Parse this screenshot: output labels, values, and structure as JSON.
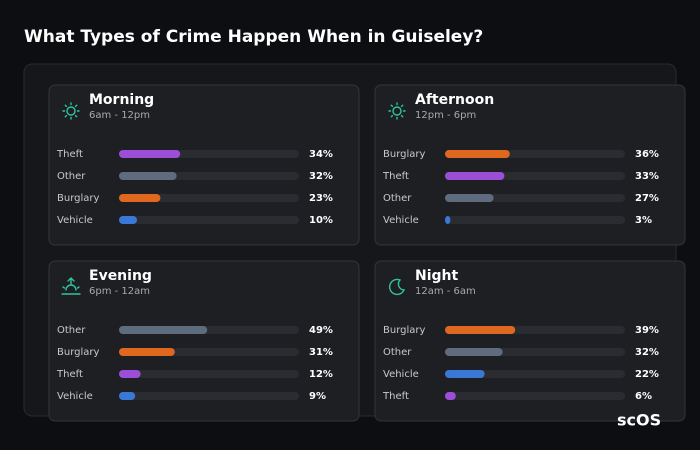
{
  "title": "What Types of Crime Happen When in Guiseley?",
  "logo": "scOS",
  "chart_data": [
    {
      "type": "bar",
      "title": "Morning",
      "subtitle": "6am - 12pm",
      "categories": [
        "Theft",
        "Other",
        "Burglary",
        "Vehicle"
      ],
      "values": [
        34,
        32,
        23,
        10
      ],
      "value_labels": [
        "34%",
        "32%",
        "23%",
        "10%"
      ],
      "colors": [
        "#9b4fd6",
        "#5f6b7f",
        "#e0681e",
        "#3a78d8"
      ],
      "xlim": [
        0,
        100
      ]
    },
    {
      "type": "bar",
      "title": "Afternoon",
      "subtitle": "12pm - 6pm",
      "categories": [
        "Burglary",
        "Theft",
        "Other",
        "Vehicle"
      ],
      "values": [
        36,
        33,
        27,
        3
      ],
      "value_labels": [
        "36%",
        "33%",
        "27%",
        "3%"
      ],
      "colors": [
        "#e0681e",
        "#9b4fd6",
        "#5f6b7f",
        "#3a78d8"
      ],
      "xlim": [
        0,
        100
      ]
    },
    {
      "type": "bar",
      "title": "Evening",
      "subtitle": "6pm - 12am",
      "categories": [
        "Other",
        "Burglary",
        "Theft",
        "Vehicle"
      ],
      "values": [
        49,
        31,
        12,
        9
      ],
      "value_labels": [
        "49%",
        "31%",
        "12%",
        "9%"
      ],
      "colors": [
        "#5f6b7f",
        "#e0681e",
        "#9b4fd6",
        "#3a78d8"
      ],
      "xlim": [
        0,
        100
      ]
    },
    {
      "type": "bar",
      "title": "Night",
      "subtitle": "12am - 6am",
      "categories": [
        "Burglary",
        "Other",
        "Vehicle",
        "Theft"
      ],
      "values": [
        39,
        32,
        22,
        6
      ],
      "value_labels": [
        "39%",
        "32%",
        "22%",
        "6%"
      ],
      "colors": [
        "#e0681e",
        "#5f6b7f",
        "#3a78d8",
        "#9b4fd6"
      ],
      "xlim": [
        0,
        100
      ]
    }
  ]
}
